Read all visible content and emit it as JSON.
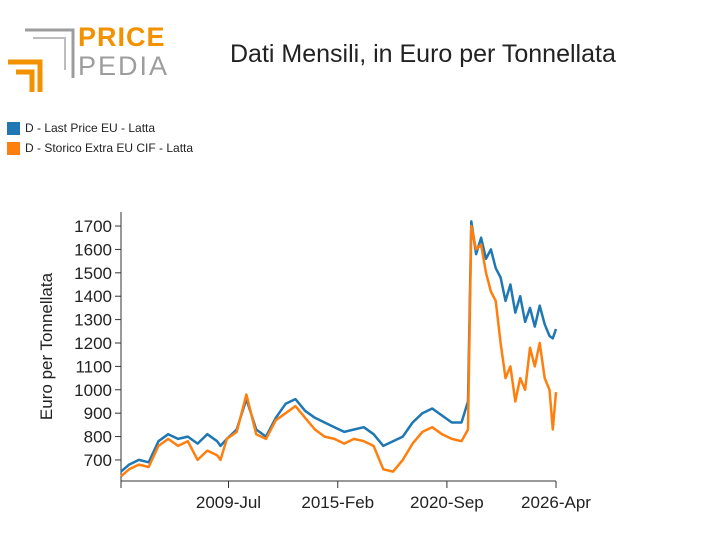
{
  "logo": {
    "word_1": "PRICE",
    "word_2": "PEDIA"
  },
  "colors": {
    "series_1": "#1f77b4",
    "series_2": "#ff7f0e",
    "logo_orange": "#f39200",
    "logo_gray": "#9d9d9d"
  },
  "chart_data": {
    "type": "line",
    "title": "Dati Mensili, in Euro per Tonnellata",
    "xlabel": "",
    "ylabel": "Euro per Tonnellata",
    "x_ticks": [
      "2009-Jul",
      "2015-Feb",
      "2020-Sep",
      "2026-Apr"
    ],
    "ylim": [
      610,
      1760
    ],
    "y_ticks": [
      700,
      800,
      900,
      1000,
      1100,
      1200,
      1300,
      1400,
      1500,
      1600,
      1700
    ],
    "legend_position": "top-left",
    "grid": false,
    "x": [
      "2004-01",
      "2004-06",
      "2004-12",
      "2005-06",
      "2005-12",
      "2006-06",
      "2006-12",
      "2007-06",
      "2007-12",
      "2008-06",
      "2008-12",
      "2009-02",
      "2009-06",
      "2009-12",
      "2010-06",
      "2010-12",
      "2011-06",
      "2011-12",
      "2012-06",
      "2012-12",
      "2013-06",
      "2013-12",
      "2014-06",
      "2014-12",
      "2015-06",
      "2015-12",
      "2016-06",
      "2016-12",
      "2017-06",
      "2017-12",
      "2018-06",
      "2018-12",
      "2019-06",
      "2019-12",
      "2020-06",
      "2020-12",
      "2021-06",
      "2021-10",
      "2021-12",
      "2022-03",
      "2022-06",
      "2022-09",
      "2022-12",
      "2023-03",
      "2023-06",
      "2023-09",
      "2023-12",
      "2024-03",
      "2024-06",
      "2024-09",
      "2024-12",
      "2025-03",
      "2025-06",
      "2025-09",
      "2025-12",
      "2026-02",
      "2026-04"
    ],
    "series": [
      {
        "name": "D - Last Price EU - Latta",
        "values": [
          650,
          680,
          700,
          690,
          780,
          810,
          790,
          800,
          770,
          810,
          780,
          760,
          790,
          830,
          960,
          830,
          800,
          880,
          940,
          960,
          910,
          880,
          860,
          840,
          820,
          830,
          840,
          810,
          760,
          780,
          800,
          860,
          900,
          920,
          890,
          860,
          860,
          950,
          1720,
          1580,
          1650,
          1560,
          1600,
          1520,
          1480,
          1380,
          1450,
          1330,
          1400,
          1290,
          1350,
          1270,
          1360,
          1280,
          1230,
          1220,
          1260
        ]
      },
      {
        "name": "D - Storico Extra EU CIF - Latta",
        "values": [
          630,
          660,
          680,
          670,
          760,
          790,
          760,
          780,
          700,
          740,
          720,
          700,
          790,
          820,
          980,
          810,
          790,
          870,
          900,
          930,
          880,
          830,
          800,
          790,
          770,
          790,
          780,
          760,
          660,
          650,
          700,
          770,
          820,
          840,
          810,
          790,
          780,
          830,
          1700,
          1600,
          1620,
          1500,
          1420,
          1380,
          1200,
          1050,
          1100,
          950,
          1050,
          1000,
          1180,
          1100,
          1200,
          1050,
          1000,
          830,
          990
        ]
      }
    ]
  }
}
